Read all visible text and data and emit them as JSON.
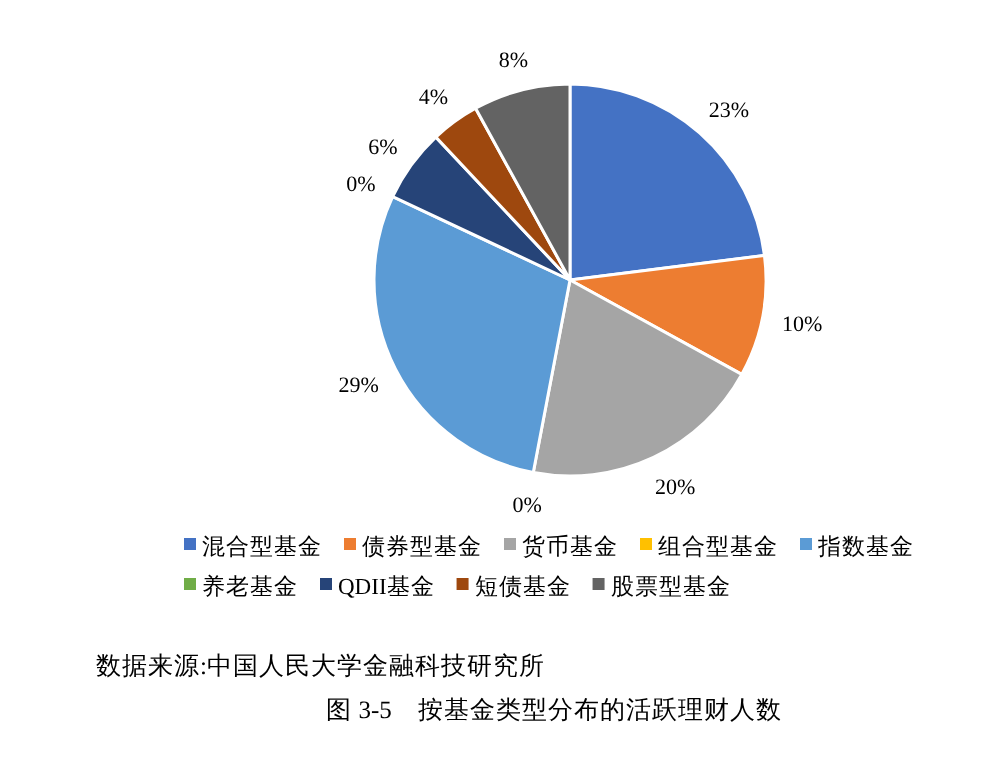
{
  "chart_data": {
    "type": "pie",
    "categories": [
      "混合型基金",
      "债券型基金",
      "货币基金",
      "组合型基金",
      "指数基金",
      "养老基金",
      "QDII基金",
      "短债基金",
      "股票型基金"
    ],
    "values": [
      23,
      10,
      20,
      0,
      29,
      0,
      6,
      4,
      8
    ],
    "value_labels": [
      "23%",
      "10%",
      "20%",
      "0%",
      "29%",
      "0%",
      "6%",
      "4%",
      "8%"
    ],
    "colors": [
      "#4472c4",
      "#ed7d31",
      "#a5a5a5",
      "#ffc000",
      "#5b9bd5",
      "#70ad47",
      "#264478",
      "#9e480e",
      "#636363"
    ],
    "legend": "bottom",
    "annotations": [
      "数据来源:中国人民大学金融科技研究所",
      "图 3-5　按基金类型分布的活跃理财人数"
    ]
  }
}
